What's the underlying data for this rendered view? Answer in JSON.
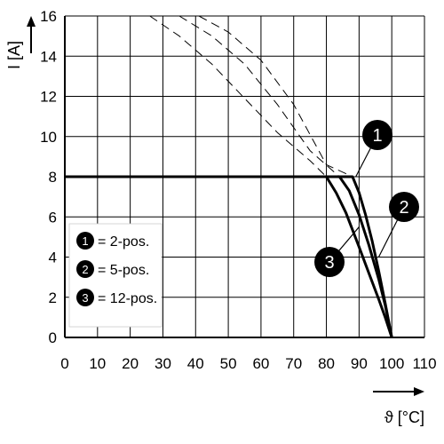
{
  "chart_data": {
    "type": "line",
    "xlabel": "ϑ [°C]",
    "ylabel": "I [A]",
    "xlim": [
      0,
      110
    ],
    "ylim": [
      0,
      16
    ],
    "x_ticks": [
      "0",
      "10",
      "20",
      "30",
      "40",
      "50",
      "60",
      "70",
      "80",
      "90",
      "100",
      "110"
    ],
    "y_ticks": [
      "0",
      "2",
      "4",
      "6",
      "8",
      "10",
      "12",
      "14",
      "16"
    ],
    "grid": true,
    "legend": {
      "placement": "bottom-left",
      "items": [
        {
          "marker": "1",
          "label": "= 2-pos."
        },
        {
          "marker": "2",
          "label": "= 5-pos."
        },
        {
          "marker": "3",
          "label": "= 12-pos."
        }
      ]
    },
    "series": [
      {
        "marker": "1",
        "style": "solid",
        "points": [
          [
            0,
            8
          ],
          [
            88,
            8
          ],
          [
            90,
            7.2
          ],
          [
            92,
            6.1
          ],
          [
            94,
            4.8
          ],
          [
            96,
            3.3
          ],
          [
            98,
            1.7
          ],
          [
            100,
            0
          ]
        ]
      },
      {
        "marker": "2",
        "style": "solid",
        "points": [
          [
            0,
            8
          ],
          [
            84,
            8
          ],
          [
            87,
            7.3
          ],
          [
            90,
            6.1
          ],
          [
            93,
            4.6
          ],
          [
            96,
            2.9
          ],
          [
            98,
            1.6
          ],
          [
            100,
            0
          ]
        ]
      },
      {
        "marker": "3",
        "style": "solid",
        "points": [
          [
            0,
            8
          ],
          [
            80,
            8
          ],
          [
            83,
            7.2
          ],
          [
            86,
            6.2
          ],
          [
            90,
            4.5
          ],
          [
            93,
            3.2
          ],
          [
            96,
            1.9
          ],
          [
            98,
            1.0
          ],
          [
            100,
            0
          ]
        ]
      },
      {
        "marker": "1",
        "style": "dashed",
        "points": [
          [
            41,
            16
          ],
          [
            50,
            15.2
          ],
          [
            60,
            13.8
          ],
          [
            70,
            11.6
          ],
          [
            80,
            8.6
          ],
          [
            88,
            8
          ]
        ]
      },
      {
        "marker": "2",
        "style": "dashed",
        "points": [
          [
            35,
            16
          ],
          [
            45,
            15
          ],
          [
            55,
            13.6
          ],
          [
            65,
            11.6
          ],
          [
            75,
            9.3
          ],
          [
            84,
            8
          ]
        ]
      },
      {
        "marker": "3",
        "style": "dashed",
        "points": [
          [
            26,
            16
          ],
          [
            35,
            15
          ],
          [
            45,
            13.6
          ],
          [
            55,
            11.9
          ],
          [
            65,
            10.2
          ],
          [
            75,
            8.8
          ],
          [
            80,
            8
          ]
        ]
      }
    ],
    "callouts": [
      {
        "marker": "1",
        "at": [
          89,
          8
        ]
      },
      {
        "marker": "2",
        "at": [
          96,
          4
        ]
      },
      {
        "marker": "3",
        "at": [
          90,
          5.5
        ]
      }
    ]
  }
}
